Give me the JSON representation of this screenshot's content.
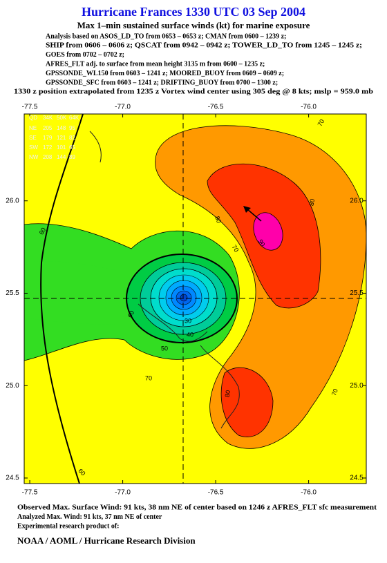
{
  "header": {
    "title": "Hurricane Frances 1330 UTC 03 Sep 2004",
    "subtitle": "Max 1–min sustained surface winds (kt) for marine exposure",
    "analysis": [
      "Analysis based on  ASOS_LD_TO from 0653 – 0653 z;  CMAN from 0600 – 1239 z;",
      "SHIP from 0606 – 0606 z;  QSCAT from 0942 – 0942 z;  TOWER_LD_TO from 1245 – 1245 z;",
      "GOES from 0702 – 0702 z;",
      "AFRES_FLT adj. to surface from mean height 3135 m from 0600 – 1235 z;",
      "GPSSONDE_WL150 from 0603 – 1241 z;  MOORED_BUOY from 0609 – 0609 z;",
      "GPSSONDE_SFC from 0603 – 1241 z;  DRIFTING_BUOY from 0700 – 1300 z;"
    ],
    "position_note": "1330 z position extrapolated from 1235 z Vortex wind center using 305 deg @ 8 kts; mslp = 959.0 mb"
  },
  "map": {
    "xlim": [
      -77.53,
      -75.69
    ],
    "ylim": [
      24.47,
      26.47
    ],
    "xticks": [
      -77.5,
      {
        "value": -77.0,
        "label": "-77.0"
      },
      -76.5,
      {
        "value": -76.0,
        "label": "-76.0"
      }
    ],
    "yticks": [
      24.5,
      {
        "value": 25.0,
        "label": "25.0"
      },
      25.5,
      {
        "value": 26.0,
        "label": "26.0"
      }
    ],
    "contour_labels": [
      "70",
      "80",
      "90",
      "80",
      "70",
      "60",
      "50",
      "40",
      "30",
      "70",
      "80",
      "70",
      "60",
      "60"
    ],
    "wind_radii": {
      "header": [
        "QD",
        "34K",
        "50K",
        "64K"
      ],
      "rows": [
        [
          "NE",
          205,
          148,
          95
        ],
        [
          "SE",
          179,
          121,
          82
        ],
        [
          "SW",
          172,
          101,
          65
        ],
        [
          "NW",
          208,
          144,
          89
        ]
      ]
    }
  },
  "footer": {
    "lines": [
      "Observed Max. Surface Wind: 91 kts, 38 nm NE of center based on 1246 z AFRES_FLT sfc measurement",
      "Analyzed Max. Wind: 91 kts, 37 nm NE of center",
      "Experimental research product of:"
    ],
    "credit": "NOAA / AOML / Hurricane Research Division"
  }
}
